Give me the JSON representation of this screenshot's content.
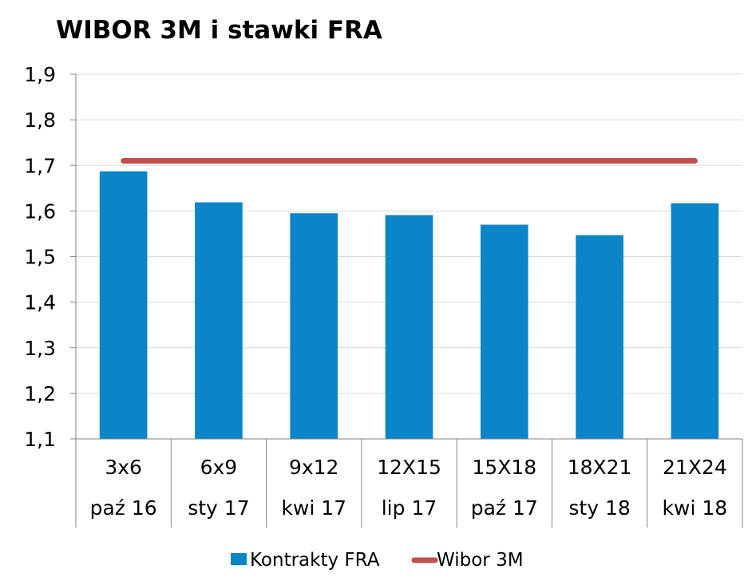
{
  "chart_data": {
    "type": "bar",
    "title": "WIBOR 3M i stawki FRA",
    "xlabel": "",
    "ylabel": "",
    "ylim": [
      1.1,
      1.9
    ],
    "yticks": [
      "1,1",
      "1,2",
      "1,3",
      "1,4",
      "1,5",
      "1,6",
      "1,7",
      "1,8",
      "1,9"
    ],
    "grid": true,
    "legend": "bottom",
    "categories": [
      {
        "contract": "3x6",
        "date": "paź 16"
      },
      {
        "contract": "6x9",
        "date": "sty 17"
      },
      {
        "contract": "9x12",
        "date": "kwi 17"
      },
      {
        "contract": "12X15",
        "date": "lip 17"
      },
      {
        "contract": "15X18",
        "date": "paź 17"
      },
      {
        "contract": "18X21",
        "date": "sty 18"
      },
      {
        "contract": "21X24",
        "date": "kwi 18"
      }
    ],
    "series": [
      {
        "name": "Kontrakty FRA",
        "type": "bar",
        "color": "#0a85c8",
        "values": [
          1.687,
          1.619,
          1.595,
          1.591,
          1.57,
          1.547,
          1.617
        ]
      },
      {
        "name": "Wibor 3M",
        "type": "line",
        "color": "#c0504d",
        "values": [
          1.71,
          1.71,
          1.71,
          1.71,
          1.71,
          1.71,
          1.71
        ]
      }
    ]
  }
}
